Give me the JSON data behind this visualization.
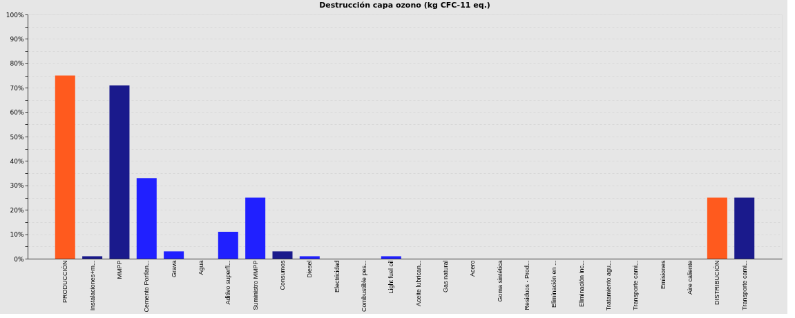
{
  "chart_data": {
    "type": "bar",
    "title": "Destrucción capa ozono (kg CFC-11 eq.)",
    "categories": [
      "PRODUCCIÓN",
      "Instalaciones+m...",
      "MMPP",
      "Cemento Portlan...",
      "Grava",
      "Agua",
      "Aditivo superfl...",
      "Suministro MMPP",
      "Consumos",
      "Diesel",
      "Electricidad",
      "Combustible pes...",
      "Light fuel oil",
      "Aceite lubrican...",
      "Gas natural",
      "Acero",
      "Goma sintética",
      "Residuos - Prod...",
      "Eliminación en ...",
      "Eliminación inc...",
      "Tratamiento agu...",
      "Transporte cami...",
      "Emisiones",
      "Aire caliente",
      "DISTRIBUCIÓN",
      "Transporte cami..."
    ],
    "values": [
      75,
      1,
      71,
      33,
      3,
      0,
      11,
      25,
      3,
      1,
      0,
      0,
      1,
      0,
      0,
      0,
      0,
      0,
      0,
      0,
      0,
      0,
      0,
      0,
      25,
      25
    ],
    "colors": [
      "#ff5a1e",
      "#1a1a8c",
      "#1a1a8c",
      "#2020ff",
      "#2020ff",
      "#2020ff",
      "#2020ff",
      "#2020ff",
      "#1a1a8c",
      "#2020ff",
      "#2020ff",
      "#2020ff",
      "#2020ff",
      "#2020ff",
      "#2020ff",
      "#2020ff",
      "#2020ff",
      "#2020ff",
      "#2020ff",
      "#2020ff",
      "#2020ff",
      "#2020ff",
      "#2020ff",
      "#2020ff",
      "#ff5a1e",
      "#1a1a8c"
    ],
    "ylim": [
      0,
      100
    ],
    "yticks": [
      {
        "value": 0,
        "label": "0%"
      },
      {
        "value": 5,
        "label": null
      },
      {
        "value": 10,
        "label": "10%"
      },
      {
        "value": 15,
        "label": null
      },
      {
        "value": 20,
        "label": "20%"
      },
      {
        "value": 25,
        "label": null
      },
      {
        "value": 30,
        "label": "30%"
      },
      {
        "value": 35,
        "label": null
      },
      {
        "value": 40,
        "label": "40%"
      },
      {
        "value": 45,
        "label": null
      },
      {
        "value": 50,
        "label": "50%"
      },
      {
        "value": 55,
        "label": null
      },
      {
        "value": 60,
        "label": "60%"
      },
      {
        "value": 65,
        "label": null
      },
      {
        "value": 70,
        "label": "70%"
      },
      {
        "value": 75,
        "label": null
      },
      {
        "value": 80,
        "label": "80%"
      },
      {
        "value": 85,
        "label": null
      },
      {
        "value": 90,
        "label": "90%"
      },
      {
        "value": 95,
        "label": null
      },
      {
        "value": 100,
        "label": "100%"
      }
    ],
    "grid": "y"
  }
}
